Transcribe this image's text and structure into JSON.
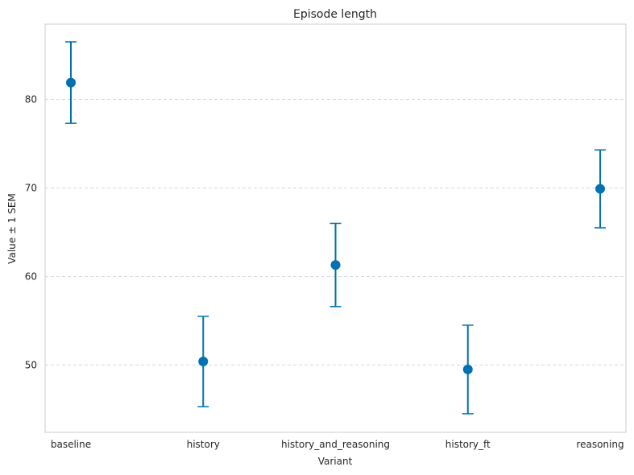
{
  "chart_data": {
    "type": "errorbar",
    "title": "Episode length",
    "xlabel": "Variant",
    "ylabel": "Value ± 1 SEM",
    "categories": [
      "baseline",
      "history",
      "history_and_reasoning",
      "history_ft",
      "reasoning"
    ],
    "values": [
      81.9,
      50.4,
      61.3,
      49.5,
      69.9
    ],
    "errors": [
      4.6,
      5.1,
      4.7,
      5.0,
      4.4
    ],
    "ylim": [
      42.4,
      88.5
    ],
    "yticks": [
      50,
      60,
      70,
      80
    ],
    "grid": true,
    "color": "#0072b2"
  }
}
